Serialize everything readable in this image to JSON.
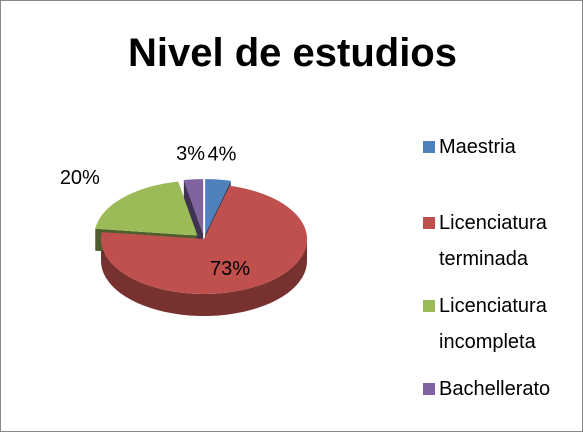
{
  "chart_data": {
    "type": "pie",
    "title": "Nivel de estudios",
    "categories": [
      "Maestria",
      "Licenciatura terminada",
      "Licenciatura incompleta",
      "Bachellerato"
    ],
    "values": [
      4,
      73,
      20,
      3
    ],
    "value_labels": [
      "4%",
      "73%",
      "20%",
      "3%"
    ],
    "colors": [
      "#4f81bd",
      "#c0504d",
      "#9bbb59",
      "#8064a2"
    ],
    "legend": "right"
  }
}
